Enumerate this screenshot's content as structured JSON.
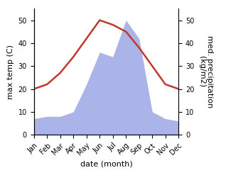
{
  "chart_data": {
    "type": "line",
    "categories": [
      "Jan",
      "Feb",
      "Mar",
      "Apr",
      "May",
      "Jun",
      "Jul",
      "Aug",
      "Sep",
      "Oct",
      "Nov",
      "Dec"
    ],
    "xlabel": "date (month)",
    "ylabel": "max temp (C)",
    "y2label": "med. precipitation\n(kg/m2)",
    "ylim": [
      0,
      55
    ],
    "yticks": [
      0,
      10,
      20,
      30,
      40,
      50
    ],
    "y2lim": [
      0,
      55
    ],
    "y2ticks": [
      0,
      10,
      20,
      30,
      40,
      50
    ],
    "grid": false,
    "series": [
      {
        "type": "area",
        "axis": "y2",
        "color": "#aab4e8",
        "values": [
          7,
          8,
          8,
          10,
          22,
          36,
          34,
          50,
          42,
          10,
          7,
          6
        ]
      },
      {
        "type": "line",
        "color": "#c0392b",
        "values": [
          20,
          22,
          27,
          34,
          42,
          50,
          48,
          45,
          38,
          30,
          22,
          20
        ]
      }
    ]
  }
}
